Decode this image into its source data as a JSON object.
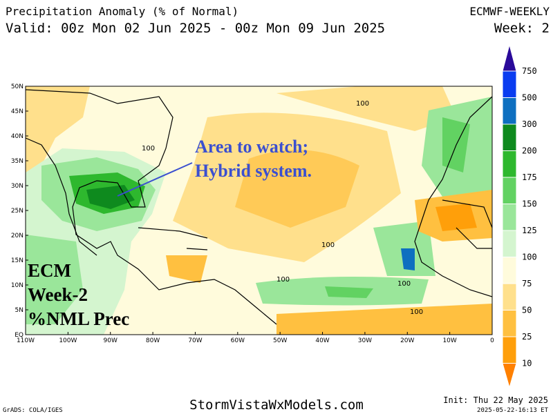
{
  "header": {
    "title": "Precipitation Anomaly (% of Normal)",
    "valid": "Valid: 00z Mon 02 Jun 2025 - 00z Mon 09 Jun 2025",
    "model": "ECMWF-WEEKLY",
    "week": "Week: 2"
  },
  "map": {
    "lat_labels": [
      "50N",
      "45N",
      "40N",
      "35N",
      "30N",
      "25N",
      "20N",
      "15N",
      "10N",
      "5N",
      "EQ"
    ],
    "lon_labels": [
      "110W",
      "100W",
      "90W",
      "80W",
      "70W",
      "60W",
      "50W",
      "40W",
      "30W",
      "20W",
      "10W",
      "0"
    ],
    "contour_labels": [
      "100",
      "100",
      "100",
      "100",
      "100",
      "100"
    ],
    "annotation": [
      "Area to watch;",
      "Hybrid system."
    ],
    "label": [
      "ECM",
      "Week-2",
      "%NML Prec"
    ]
  },
  "colorbar": {
    "levels": [
      750,
      500,
      300,
      200,
      175,
      150,
      125,
      100,
      75,
      50,
      25,
      10
    ],
    "colors": [
      "#2a0a9a",
      "#0a3cf0",
      "#0e6fc0",
      "#0e8a1e",
      "#2eb82e",
      "#62d262",
      "#9ae69a",
      "#d4f5cf",
      "#fffbdc",
      "#ffe08c",
      "#ffc040",
      "#ff9f0a",
      "#ff8000"
    ]
  },
  "footer": {
    "site": "StormVistaWxModels.com",
    "init": "Init: Thu 22 May 2025",
    "stamp": "2025-05-22-16:13 ET",
    "credit": "GrADS: COLA/IGES"
  }
}
